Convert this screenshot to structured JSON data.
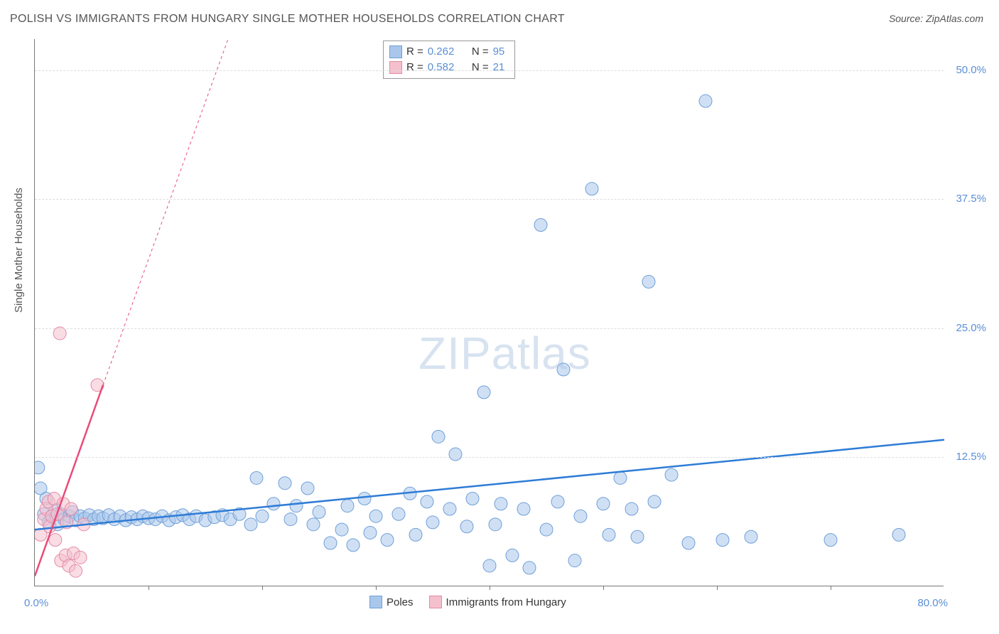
{
  "title": "POLISH VS IMMIGRANTS FROM HUNGARY SINGLE MOTHER HOUSEHOLDS CORRELATION CHART",
  "source_label": "Source: ZipAtlas.com",
  "y_axis_label": "Single Mother Households",
  "watermark": {
    "bold": "ZIP",
    "rest": "atlas"
  },
  "axes": {
    "xlim": [
      0,
      80
    ],
    "ylim": [
      0,
      53
    ],
    "x_min_label": "0.0%",
    "x_max_label": "80.0%",
    "y_ticks": [
      {
        "v": 12.5,
        "label": "12.5%"
      },
      {
        "v": 25.0,
        "label": "25.0%"
      },
      {
        "v": 37.5,
        "label": "37.5%"
      },
      {
        "v": 50.0,
        "label": "50.0%"
      }
    ],
    "x_tick_positions": [
      10,
      20,
      30,
      40,
      50,
      60,
      70
    ]
  },
  "colors": {
    "series_a_fill": "#a9c7eb",
    "series_a_stroke": "#6f9fd8",
    "series_b_fill": "#f4c0cd",
    "series_b_stroke": "#e48aa4",
    "line_a": "#2e7cd6",
    "line_b": "#e94b7a",
    "text_blue": "#5a8fd6",
    "grid": "#dddddd",
    "axis": "#777777",
    "background": "#ffffff",
    "title_color": "#555555"
  },
  "stats": {
    "rows": [
      {
        "swatch": "a",
        "r_label": "R = ",
        "r": "0.262",
        "n_label": "N = ",
        "n": "95"
      },
      {
        "swatch": "b",
        "r_label": "R = ",
        "r": "0.582",
        "n_label": "N = ",
        "n": "21"
      }
    ]
  },
  "legend": {
    "items": [
      {
        "swatch": "a",
        "label": "Poles"
      },
      {
        "swatch": "b",
        "label": "Immigrants from Hungary"
      }
    ]
  },
  "trend_lines": {
    "a": {
      "x1": 0,
      "y1": 5.5,
      "x2": 80,
      "y2": 14.2
    },
    "b_solid": {
      "x1": 0,
      "y1": 1.0,
      "x2": 6.0,
      "y2": 19.5
    },
    "b_dashed": {
      "x1": 6.0,
      "y1": 19.5,
      "x2": 17.0,
      "y2": 53.0
    }
  },
  "series_a": {
    "marker_r": 9,
    "points": [
      [
        0.3,
        11.5
      ],
      [
        0.5,
        9.5
      ],
      [
        0.8,
        7.0
      ],
      [
        1.0,
        8.5
      ],
      [
        1.2,
        6.2
      ],
      [
        1.5,
        6.8
      ],
      [
        1.8,
        7.4
      ],
      [
        2.0,
        6.0
      ],
      [
        2.3,
        7.0
      ],
      [
        2.6,
        6.5
      ],
      [
        3.0,
        6.8
      ],
      [
        3.3,
        7.2
      ],
      [
        3.6,
        6.4
      ],
      [
        4.0,
        6.8
      ],
      [
        4.4,
        6.6
      ],
      [
        4.8,
        6.9
      ],
      [
        5.2,
        6.5
      ],
      [
        5.6,
        6.8
      ],
      [
        6.0,
        6.6
      ],
      [
        6.5,
        6.9
      ],
      [
        7.0,
        6.5
      ],
      [
        7.5,
        6.8
      ],
      [
        8.0,
        6.4
      ],
      [
        8.5,
        6.7
      ],
      [
        9.0,
        6.5
      ],
      [
        9.5,
        6.8
      ],
      [
        10.0,
        6.6
      ],
      [
        10.6,
        6.5
      ],
      [
        11.2,
        6.8
      ],
      [
        11.8,
        6.4
      ],
      [
        12.4,
        6.7
      ],
      [
        13.0,
        6.9
      ],
      [
        13.6,
        6.5
      ],
      [
        14.2,
        6.8
      ],
      [
        15.0,
        6.4
      ],
      [
        15.8,
        6.7
      ],
      [
        16.5,
        6.9
      ],
      [
        17.2,
        6.5
      ],
      [
        18.0,
        7.0
      ],
      [
        19.0,
        6.0
      ],
      [
        19.5,
        10.5
      ],
      [
        20.0,
        6.8
      ],
      [
        21.0,
        8.0
      ],
      [
        22.0,
        10.0
      ],
      [
        22.5,
        6.5
      ],
      [
        23.0,
        7.8
      ],
      [
        24.0,
        9.5
      ],
      [
        24.5,
        6.0
      ],
      [
        25.0,
        7.2
      ],
      [
        26.0,
        4.2
      ],
      [
        27.0,
        5.5
      ],
      [
        27.5,
        7.8
      ],
      [
        28.0,
        4.0
      ],
      [
        29.0,
        8.5
      ],
      [
        29.5,
        5.2
      ],
      [
        30.0,
        6.8
      ],
      [
        31.0,
        4.5
      ],
      [
        32.0,
        7.0
      ],
      [
        33.0,
        9.0
      ],
      [
        33.5,
        5.0
      ],
      [
        34.5,
        8.2
      ],
      [
        35.0,
        6.2
      ],
      [
        35.5,
        14.5
      ],
      [
        36.5,
        7.5
      ],
      [
        37.0,
        12.8
      ],
      [
        38.0,
        5.8
      ],
      [
        38.5,
        8.5
      ],
      [
        39.5,
        18.8
      ],
      [
        40.0,
        2.0
      ],
      [
        40.5,
        6.0
      ],
      [
        41.0,
        8.0
      ],
      [
        42.0,
        3.0
      ],
      [
        43.0,
        7.5
      ],
      [
        43.5,
        1.8
      ],
      [
        44.5,
        35.0
      ],
      [
        45.0,
        5.5
      ],
      [
        46.0,
        8.2
      ],
      [
        46.5,
        21.0
      ],
      [
        47.5,
        2.5
      ],
      [
        48.0,
        6.8
      ],
      [
        49.0,
        38.5
      ],
      [
        50.0,
        8.0
      ],
      [
        50.5,
        5.0
      ],
      [
        51.5,
        10.5
      ],
      [
        52.5,
        7.5
      ],
      [
        53.0,
        4.8
      ],
      [
        54.0,
        29.5
      ],
      [
        54.5,
        8.2
      ],
      [
        56.0,
        10.8
      ],
      [
        57.5,
        4.2
      ],
      [
        59.0,
        47.0
      ],
      [
        60.5,
        4.5
      ],
      [
        63.0,
        4.8
      ],
      [
        70.0,
        4.5
      ],
      [
        76.0,
        5.0
      ]
    ]
  },
  "series_b": {
    "marker_r": 9,
    "points": [
      [
        0.5,
        5.0
      ],
      [
        0.8,
        6.5
      ],
      [
        1.0,
        7.5
      ],
      [
        1.2,
        8.2
      ],
      [
        1.3,
        5.8
      ],
      [
        1.5,
        6.8
      ],
      [
        1.7,
        8.5
      ],
      [
        1.8,
        4.5
      ],
      [
        2.0,
        7.0
      ],
      [
        2.2,
        24.5
      ],
      [
        2.3,
        2.5
      ],
      [
        2.5,
        8.0
      ],
      [
        2.7,
        3.0
      ],
      [
        2.8,
        6.2
      ],
      [
        3.0,
        2.0
      ],
      [
        3.2,
        7.5
      ],
      [
        3.4,
        3.2
      ],
      [
        3.6,
        1.5
      ],
      [
        4.0,
        2.8
      ],
      [
        4.3,
        6.0
      ],
      [
        5.5,
        19.5
      ]
    ]
  }
}
